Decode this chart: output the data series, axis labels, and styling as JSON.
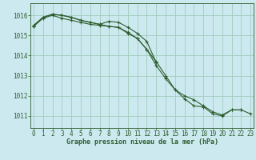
{
  "title": "Graphe pression niveau de la mer (hPa)",
  "background_color": "#cde9f0",
  "plot_bg_color": "#cde9f0",
  "grid_color": "#a0ccbb",
  "line_color": "#2d5e2d",
  "x_ticks": [
    0,
    1,
    2,
    3,
    4,
    5,
    6,
    7,
    8,
    9,
    10,
    11,
    12,
    13,
    14,
    15,
    16,
    17,
    18,
    19,
    20,
    21,
    22,
    23
  ],
  "y_ticks": [
    1011,
    1012,
    1013,
    1014,
    1015,
    1016
  ],
  "ylim": [
    1010.4,
    1016.6
  ],
  "xlim": [
    -0.3,
    23.3
  ],
  "series": [
    [
      1015.45,
      1015.85,
      1016.0,
      1015.85,
      1015.75,
      1015.65,
      1015.55,
      1015.5,
      1015.45,
      1015.4,
      1015.15,
      1014.85,
      1014.3,
      1013.7,
      1013.0,
      1012.3,
      1012.0,
      1011.8,
      1011.5,
      1011.2,
      1011.05,
      1011.3,
      1011.3,
      1011.1
    ],
    [
      1015.45,
      1015.9,
      1016.05,
      1016.0,
      1015.9,
      1015.75,
      1015.65,
      1015.55,
      1015.45,
      1015.4,
      1015.1,
      1014.85,
      1014.3,
      1013.5,
      1012.85,
      1012.3,
      1011.85,
      1011.5,
      1011.45,
      1011.1,
      1011.0,
      1011.3,
      1011.3,
      null
    ],
    [
      1015.5,
      1015.9,
      1016.05,
      1016.0,
      1015.9,
      1015.75,
      1015.65,
      1015.55,
      1015.7,
      1015.65,
      1015.4,
      1015.1,
      1014.7,
      1013.65,
      null,
      null,
      null,
      null,
      null,
      null,
      null,
      null,
      null,
      null
    ]
  ],
  "tick_fontsize": 5.5,
  "label_fontsize": 6.0
}
